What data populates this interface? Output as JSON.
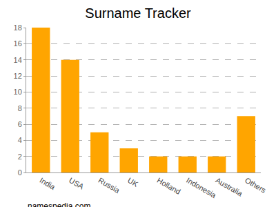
{
  "chart_data": {
    "type": "bar",
    "title": "Surname Tracker",
    "categories": [
      "India",
      "USA",
      "Russia",
      "UK",
      "Holland",
      "Indonesia",
      "Australia",
      "Others"
    ],
    "values": [
      18,
      14,
      5,
      3,
      2,
      2,
      2,
      7
    ],
    "color": "#ffa500",
    "ylim": [
      0,
      18
    ],
    "yticks": [
      0,
      2,
      4,
      6,
      8,
      10,
      12,
      14,
      16,
      18
    ],
    "grid": true,
    "annotations": [
      "namespedia.com"
    ]
  }
}
